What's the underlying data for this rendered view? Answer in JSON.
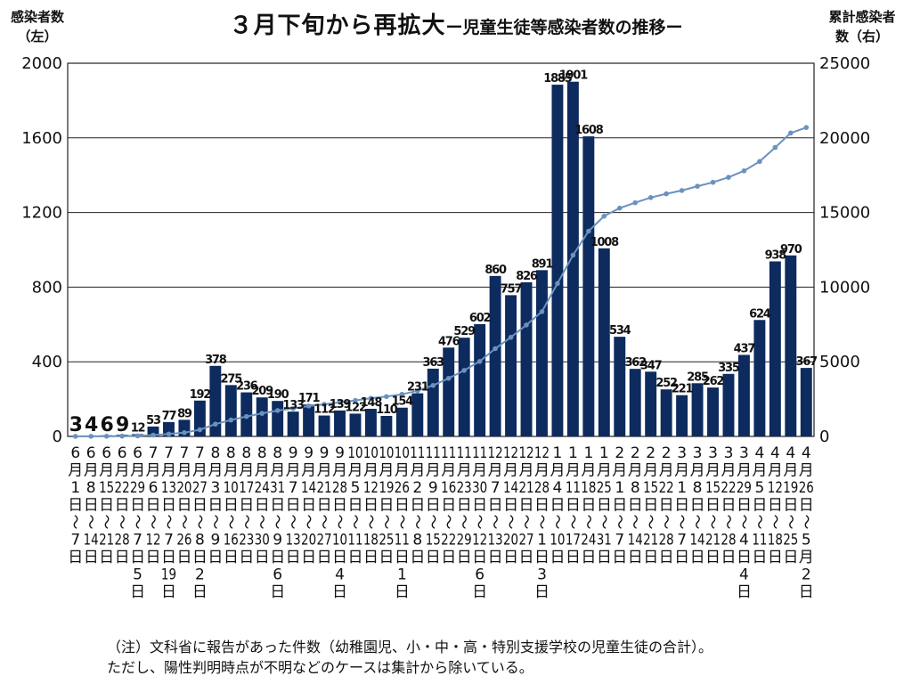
{
  "title": {
    "main": "３月下旬から再拡大",
    "sub": "ー児童生徒等感染者数の推移ー"
  },
  "notes": [
    "（注）文科省に報告があった件数（幼稚園児、小・中・高・特別支援学校の児童生徒の合計）。",
    "ただし、陽性判明時点が不明などのケースは集計から除いている。"
  ],
  "colors": {
    "bar": "#0d2b5e",
    "line": "#6a92bf",
    "grid": "#222222"
  },
  "chart_data": {
    "type": "bar",
    "ylabel_left": [
      "感染者数",
      "（左）"
    ],
    "ylabel_right": [
      "累計感染者",
      "数（右）"
    ],
    "y_left": {
      "min": 0,
      "max": 2000,
      "ticks": [
        0,
        400,
        800,
        1200,
        1600,
        2000
      ]
    },
    "y_right": {
      "min": 0,
      "max": 25000,
      "ticks": [
        0,
        5000,
        10000,
        15000,
        20000,
        25000
      ]
    },
    "grid": true,
    "categories": [
      {
        "m": "6",
        "d": "1",
        "e": "7",
        "e_m": "",
        "note": ""
      },
      {
        "m": "6",
        "d": "8",
        "e": "14",
        "e_m": "",
        "note": ""
      },
      {
        "m": "6",
        "d": "15",
        "e": "21",
        "e_m": "",
        "note": ""
      },
      {
        "m": "6",
        "d": "22",
        "e": "28",
        "e_m": "",
        "note": ""
      },
      {
        "m": "6",
        "d": "29",
        "e": "7",
        "e_m": "",
        "note": "5"
      },
      {
        "m": "7",
        "d": "6",
        "e": "12",
        "e_m": "",
        "note": ""
      },
      {
        "m": "7",
        "d": "13",
        "e": "7",
        "e_m": "",
        "note": "19"
      },
      {
        "m": "7",
        "d": "20",
        "e": "26",
        "e_m": "",
        "note": ""
      },
      {
        "m": "7",
        "d": "27",
        "e": "8",
        "e_m": "",
        "note": "2"
      },
      {
        "m": "8",
        "d": "3",
        "e": "9",
        "e_m": "",
        "note": ""
      },
      {
        "m": "8",
        "d": "10",
        "e": "16",
        "e_m": "",
        "note": ""
      },
      {
        "m": "8",
        "d": "17",
        "e": "23",
        "e_m": "",
        "note": ""
      },
      {
        "m": "8",
        "d": "24",
        "e": "30",
        "e_m": "",
        "note": ""
      },
      {
        "m": "8",
        "d": "31",
        "e": "9",
        "e_m": "",
        "note": "6"
      },
      {
        "m": "9",
        "d": "7",
        "e": "13",
        "e_m": "",
        "note": ""
      },
      {
        "m": "9",
        "d": "14",
        "e": "20",
        "e_m": "",
        "note": ""
      },
      {
        "m": "9",
        "d": "21",
        "e": "27",
        "e_m": "",
        "note": ""
      },
      {
        "m": "9",
        "d": "28",
        "e": "10",
        "e_m": "",
        "note": "4"
      },
      {
        "m": "10",
        "d": "5",
        "e": "11",
        "e_m": "",
        "note": ""
      },
      {
        "m": "10",
        "d": "12",
        "e": "18",
        "e_m": "",
        "note": ""
      },
      {
        "m": "10",
        "d": "19",
        "e": "25",
        "e_m": "",
        "note": ""
      },
      {
        "m": "10",
        "d": "26",
        "e": "11",
        "e_m": "",
        "note": "1"
      },
      {
        "m": "11",
        "d": "2",
        "e": "8",
        "e_m": "",
        "note": ""
      },
      {
        "m": "11",
        "d": "9",
        "e": "15",
        "e_m": "",
        "note": ""
      },
      {
        "m": "11",
        "d": "16",
        "e": "22",
        "e_m": "",
        "note": ""
      },
      {
        "m": "11",
        "d": "23",
        "e": "29",
        "e_m": "",
        "note": ""
      },
      {
        "m": "11",
        "d": "30",
        "e": "12",
        "e_m": "",
        "note": "6"
      },
      {
        "m": "12",
        "d": "7",
        "e": "13",
        "e_m": "",
        "note": ""
      },
      {
        "m": "12",
        "d": "14",
        "e": "20",
        "e_m": "",
        "note": ""
      },
      {
        "m": "12",
        "d": "21",
        "e": "27",
        "e_m": "",
        "note": ""
      },
      {
        "m": "12",
        "d": "28",
        "e": "1",
        "e_m": "",
        "note": "3"
      },
      {
        "m": "1",
        "d": "4",
        "e": "10",
        "e_m": "",
        "note": ""
      },
      {
        "m": "1",
        "d": "11",
        "e": "17",
        "e_m": "",
        "note": ""
      },
      {
        "m": "1",
        "d": "18",
        "e": "24",
        "e_m": "",
        "note": ""
      },
      {
        "m": "1",
        "d": "25",
        "e": "31",
        "e_m": "",
        "note": ""
      },
      {
        "m": "2",
        "d": "1",
        "e": "7",
        "e_m": "",
        "note": ""
      },
      {
        "m": "2",
        "d": "8",
        "e": "14",
        "e_m": "",
        "note": ""
      },
      {
        "m": "2",
        "d": "15",
        "e": "21",
        "e_m": "",
        "note": ""
      },
      {
        "m": "2",
        "d": "22",
        "e": "28",
        "e_m": "",
        "note": ""
      },
      {
        "m": "3",
        "d": "1",
        "e": "7",
        "e_m": "",
        "note": ""
      },
      {
        "m": "3",
        "d": "8",
        "e": "14",
        "e_m": "",
        "note": ""
      },
      {
        "m": "3",
        "d": "15",
        "e": "21",
        "e_m": "",
        "note": ""
      },
      {
        "m": "3",
        "d": "22",
        "e": "28",
        "e_m": "",
        "note": ""
      },
      {
        "m": "3",
        "d": "29",
        "e": "4",
        "e_m": "",
        "note": "4"
      },
      {
        "m": "4",
        "d": "5",
        "e": "11",
        "e_m": "",
        "note": ""
      },
      {
        "m": "4",
        "d": "12",
        "e": "18",
        "e_m": "",
        "note": ""
      },
      {
        "m": "4",
        "d": "19",
        "e": "25",
        "e_m": "",
        "note": ""
      },
      {
        "m": "4",
        "d": "26",
        "e": "5",
        "e_m": "月",
        "note": "2"
      }
    ],
    "series": [
      {
        "type": "bar",
        "axis": "left",
        "values": [
          3,
          4,
          6,
          9,
          12,
          53,
          77,
          89,
          192,
          378,
          275,
          236,
          209,
          190,
          133,
          171,
          112,
          139,
          122,
          148,
          110,
          154,
          231,
          363,
          476,
          529,
          602,
          860,
          757,
          826,
          891,
          1885,
          1901,
          1608,
          1008,
          534,
          362,
          347,
          252,
          221,
          285,
          262,
          335,
          437,
          624,
          938,
          970,
          367
        ]
      },
      {
        "type": "line",
        "axis": "right",
        "values": [
          3,
          7,
          13,
          22,
          34,
          87,
          164,
          253,
          445,
          823,
          1098,
          1334,
          1543,
          1733,
          1866,
          2037,
          2149,
          2288,
          2410,
          2558,
          2668,
          2822,
          3053,
          3416,
          3892,
          4421,
          5023,
          5883,
          6640,
          7466,
          8357,
          10242,
          12143,
          13751,
          14759,
          15293,
          15655,
          16002,
          16254,
          16475,
          16760,
          17022,
          17357,
          17794,
          18418,
          19356,
          20326,
          20693
        ]
      }
    ]
  }
}
